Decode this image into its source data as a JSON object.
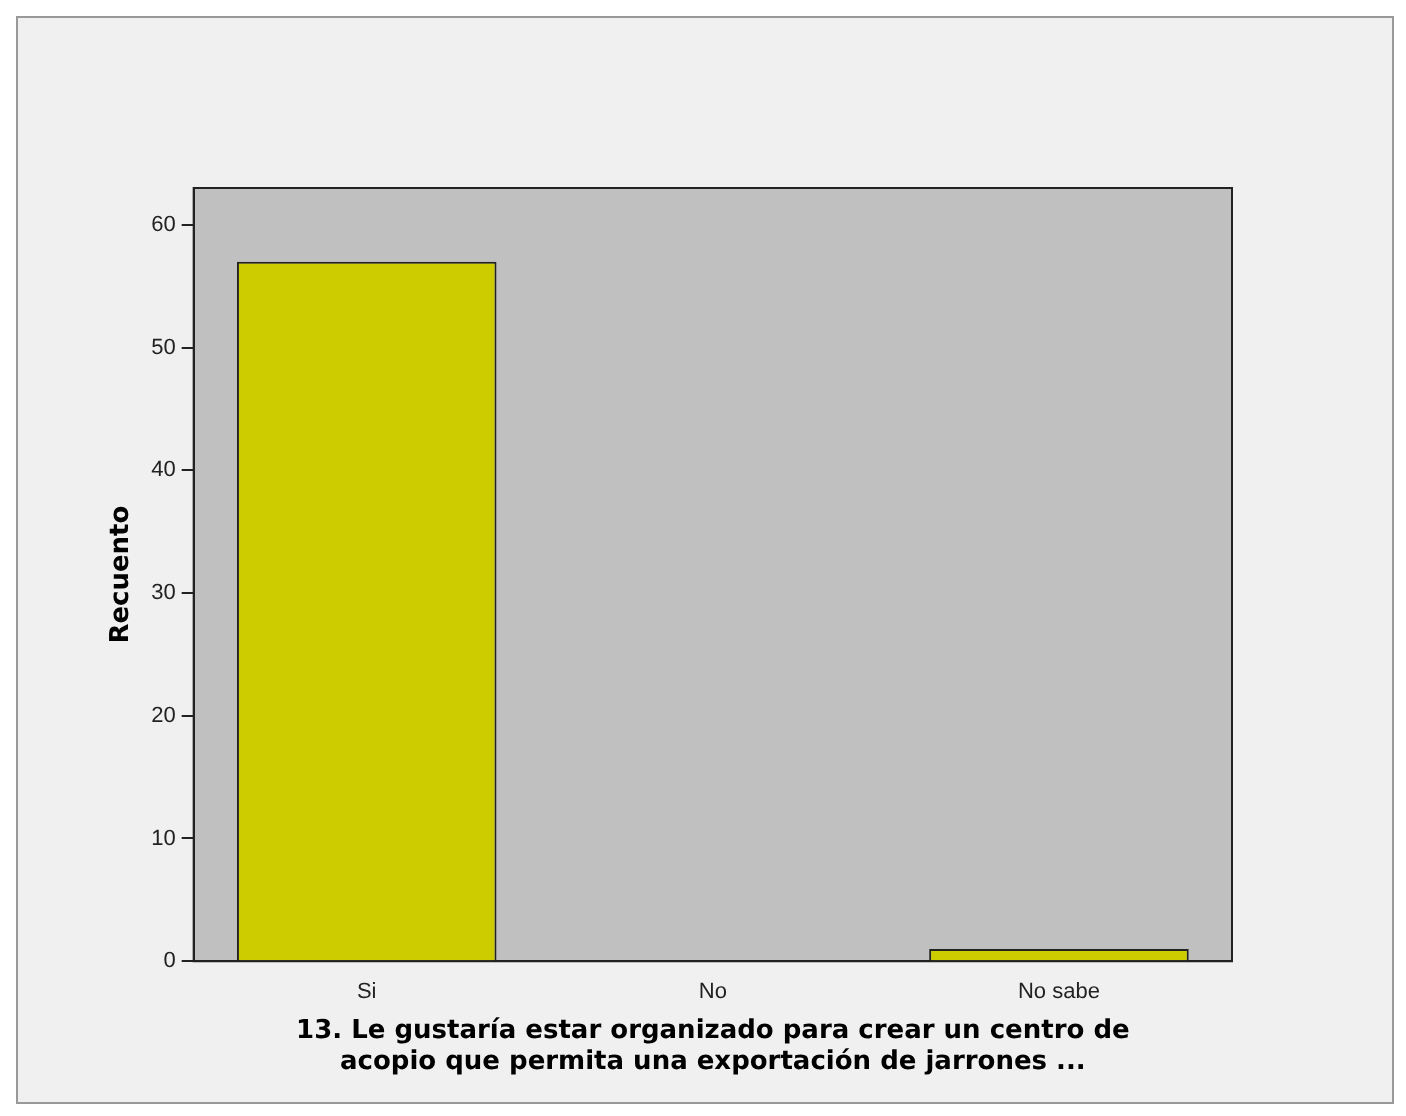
{
  "chart_data": {
    "type": "bar",
    "xlabel": "13. Le gustaría estar organizado para crear un centro de acopio que permita una exportación de jarrones ...",
    "ylabel": "Recuento",
    "categories": [
      "Si",
      "No",
      "No sabe"
    ],
    "values": [
      57,
      0,
      1
    ],
    "color": "#cccc00",
    "ylim": [
      0,
      63
    ],
    "yticks": [
      0,
      10,
      20,
      30,
      40,
      50,
      60
    ],
    "grid": false,
    "legend": false
  }
}
